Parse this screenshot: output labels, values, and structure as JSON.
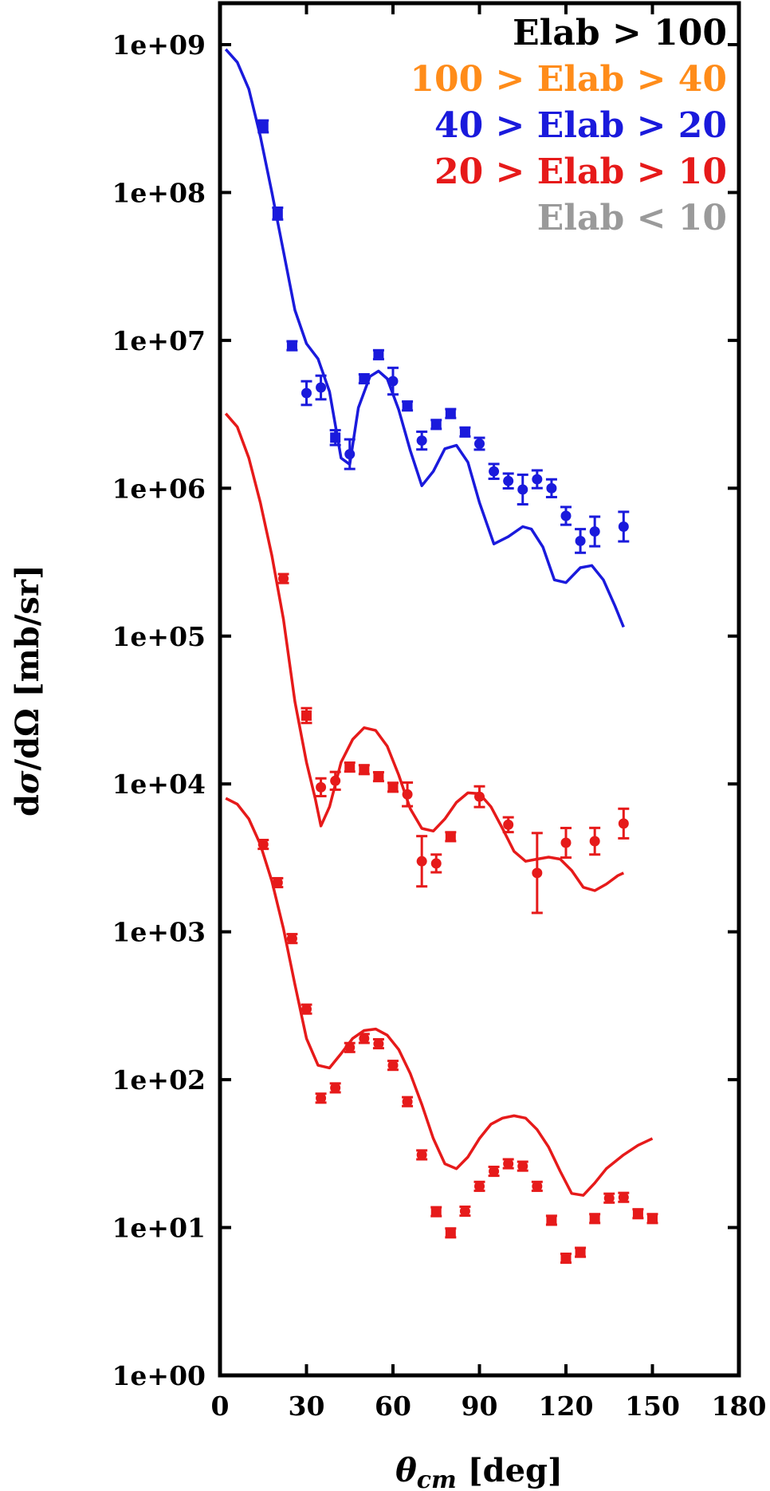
{
  "chart_data": {
    "type": "scatter",
    "xlabel": "θcm [deg]",
    "ylabel": "dσ/dΩ [mb/sr]",
    "xlim": [
      0,
      180
    ],
    "ylim": [
      1,
      1000000000
    ],
    "yscale": "log",
    "xticks": [
      0,
      30,
      60,
      90,
      120,
      150,
      180
    ],
    "yticks": [
      1,
      10,
      100,
      1000,
      10000,
      100000,
      1000000,
      10000000,
      100000000,
      1000000000
    ],
    "xtick_labels": [
      "0",
      "30",
      "60",
      "90",
      "120",
      "150",
      "180"
    ],
    "ytick_labels": [
      "1e+00",
      "1e+01",
      "1e+02",
      "1e+03",
      "1e+04",
      "1e+05",
      "1e+06",
      "1e+07",
      "1e+08",
      "1e+09"
    ],
    "grid": false,
    "legend_position": "top-right",
    "legend": [
      {
        "text": "Elab > 100",
        "color": "#000000"
      },
      {
        "text": "100 > Elab > 40",
        "color": "#ff8c1a"
      },
      {
        "text": "40 > Elab > 20",
        "color": "#1a1adc"
      },
      {
        "text": "20 > Elab > 10",
        "color": "#e61a1a"
      },
      {
        "text": "Elab < 10",
        "color": "#9a9a9a"
      }
    ],
    "series": [
      {
        "color": "#1a1adc",
        "curve": [
          [
            2,
            930000000.0
          ],
          [
            6,
            760000000.0
          ],
          [
            10,
            500000000.0
          ],
          [
            14,
            240000000.0
          ],
          [
            18,
            100000000.0
          ],
          [
            22,
            40000000.0
          ],
          [
            26,
            16000000.0
          ],
          [
            30,
            9500000.0
          ],
          [
            34,
            7500000.0
          ],
          [
            38,
            4500000.0
          ],
          [
            42,
            1600000.0
          ],
          [
            45,
            1450000.0
          ],
          [
            48,
            3500000.0
          ],
          [
            52,
            5700000.0
          ],
          [
            55,
            6200000.0
          ],
          [
            58,
            5500000.0
          ],
          [
            62,
            3400000.0
          ],
          [
            66,
            1800000.0
          ],
          [
            70,
            1040000.0
          ],
          [
            74,
            1300000.0
          ],
          [
            78,
            1850000.0
          ],
          [
            82,
            1950000.0
          ],
          [
            86,
            1500000.0
          ],
          [
            90,
            800000.0
          ],
          [
            95,
            420000.0
          ],
          [
            100,
            470000.0
          ],
          [
            105,
            550000.0
          ],
          [
            108,
            530000.0
          ],
          [
            112,
            400000.0
          ],
          [
            116,
            240000.0
          ],
          [
            120,
            230000.0
          ],
          [
            125,
            290000.0
          ],
          [
            129,
            300000.0
          ],
          [
            133,
            240000.0
          ],
          [
            137,
            160000.0
          ],
          [
            140,
            115000.0
          ]
        ],
        "points": [
          {
            "x": 15,
            "y": 280000000.0,
            "m": "s",
            "e": 0.04
          },
          {
            "x": 20,
            "y": 72000000.0,
            "m": "s",
            "e": 0.04
          },
          {
            "x": 25,
            "y": 9200000.0,
            "m": "s",
            "e": 0.03
          },
          {
            "x": 30,
            "y": 4400000.0,
            "m": "c",
            "e": 0.08
          },
          {
            "x": 35,
            "y": 4800000.0,
            "m": "c",
            "e": 0.08
          },
          {
            "x": 40,
            "y": 2200000.0,
            "m": "s",
            "e": 0.05
          },
          {
            "x": 45,
            "y": 1700000.0,
            "m": "c",
            "e": 0.1
          },
          {
            "x": 50,
            "y": 5500000.0,
            "m": "s",
            "e": 0.03
          },
          {
            "x": 55,
            "y": 8000000.0,
            "m": "s",
            "e": 0.03
          },
          {
            "x": 60,
            "y": 5300000.0,
            "m": "c",
            "e": 0.09
          },
          {
            "x": 65,
            "y": 3600000.0,
            "m": "s",
            "e": 0.03
          },
          {
            "x": 70,
            "y": 2100000.0,
            "m": "c",
            "e": 0.06
          },
          {
            "x": 75,
            "y": 2700000.0,
            "m": "s",
            "e": 0.03
          },
          {
            "x": 80,
            "y": 3200000.0,
            "m": "s",
            "e": 0.03
          },
          {
            "x": 85,
            "y": 2400000.0,
            "m": "s",
            "e": 0.03
          },
          {
            "x": 90,
            "y": 2000000.0,
            "m": "c",
            "e": 0.04
          },
          {
            "x": 95,
            "y": 1300000.0,
            "m": "c",
            "e": 0.05
          },
          {
            "x": 100,
            "y": 1120000.0,
            "m": "c",
            "e": 0.05
          },
          {
            "x": 105,
            "y": 980000.0,
            "m": "c",
            "e": 0.1
          },
          {
            "x": 110,
            "y": 1150000.0,
            "m": "c",
            "e": 0.06
          },
          {
            "x": 115,
            "y": 1000000.0,
            "m": "c",
            "e": 0.06
          },
          {
            "x": 120,
            "y": 650000.0,
            "m": "c",
            "e": 0.06
          },
          {
            "x": 125,
            "y": 440000.0,
            "m": "c",
            "e": 0.08
          },
          {
            "x": 130,
            "y": 510000.0,
            "m": "c",
            "e": 0.1
          },
          {
            "x": 140,
            "y": 550000.0,
            "m": "c",
            "e": 0.1
          }
        ]
      },
      {
        "color": "#e61a1a",
        "curve": [
          [
            2,
            3200000.0
          ],
          [
            6,
            2600000.0
          ],
          [
            10,
            1600000.0
          ],
          [
            14,
            800000.0
          ],
          [
            18,
            350000.0
          ],
          [
            22,
            130000.0
          ],
          [
            26,
            36000.0
          ],
          [
            30,
            14000.0
          ],
          [
            33,
            8000.0
          ],
          [
            35,
            5200.0
          ],
          [
            38,
            7000.0
          ],
          [
            42,
            14000.0
          ],
          [
            46,
            20000.0
          ],
          [
            50,
            24000.0
          ],
          [
            54,
            23000.0
          ],
          [
            58,
            18000.0
          ],
          [
            62,
            11500.0
          ],
          [
            66,
            6800.0
          ],
          [
            70,
            5000.0
          ],
          [
            74,
            4800.0
          ],
          [
            78,
            5800.0
          ],
          [
            82,
            7500.0
          ],
          [
            86,
            8700.0
          ],
          [
            90,
            8600.0
          ],
          [
            94,
            7000.0
          ],
          [
            98,
            5000.0
          ],
          [
            102,
            3500.0
          ],
          [
            106,
            3000.0
          ],
          [
            110,
            3100.0
          ],
          [
            114,
            3200.0
          ],
          [
            118,
            3100.0
          ],
          [
            122,
            2600.0
          ],
          [
            126,
            2000.0
          ],
          [
            130,
            1900.0
          ],
          [
            134,
            2100.0
          ],
          [
            138,
            2400.0
          ],
          [
            140,
            2500.0
          ]
        ],
        "points": [
          {
            "x": 22,
            "y": 245000.0,
            "m": "c",
            "e": 0.03
          },
          {
            "x": 30,
            "y": 29000.0,
            "m": "s",
            "e": 0.05
          },
          {
            "x": 35,
            "y": 9500.0,
            "m": "c",
            "e": 0.06
          },
          {
            "x": 40,
            "y": 10500.0,
            "m": "c",
            "e": 0.06
          },
          {
            "x": 45,
            "y": 13000.0,
            "m": "s",
            "e": 0.03
          },
          {
            "x": 50,
            "y": 12500.0,
            "m": "s",
            "e": 0.03
          },
          {
            "x": 55,
            "y": 11200.0,
            "m": "s",
            "e": 0.03
          },
          {
            "x": 60,
            "y": 9500.0,
            "m": "s",
            "e": 0.03
          },
          {
            "x": 65,
            "y": 8500.0,
            "m": "c",
            "e": 0.08
          },
          {
            "x": 70,
            "y": 3000.0,
            "m": "c",
            "e": 0.17
          },
          {
            "x": 75,
            "y": 2900.0,
            "m": "c",
            "e": 0.06
          },
          {
            "x": 80,
            "y": 4400.0,
            "m": "s",
            "e": 0.03
          },
          {
            "x": 90,
            "y": 8200.0,
            "m": "c",
            "e": 0.07
          },
          {
            "x": 100,
            "y": 5300.0,
            "m": "c",
            "e": 0.05
          },
          {
            "x": 110,
            "y": 2500.0,
            "m": "c",
            "e": 0.27
          },
          {
            "x": 120,
            "y": 4000.0,
            "m": "c",
            "e": 0.1
          },
          {
            "x": 130,
            "y": 4100.0,
            "m": "c",
            "e": 0.09
          },
          {
            "x": 140,
            "y": 5400.0,
            "m": "c",
            "e": 0.1
          }
        ]
      },
      {
        "color": "#e61a1a",
        "curve": [
          [
            2,
            8000.0
          ],
          [
            6,
            7300.0
          ],
          [
            10,
            5800.0
          ],
          [
            14,
            3900.0
          ],
          [
            18,
            2200.0
          ],
          [
            22,
            1050.0
          ],
          [
            26,
            440
          ],
          [
            30,
            190
          ],
          [
            34,
            125
          ],
          [
            38,
            120
          ],
          [
            42,
            150
          ],
          [
            46,
            190
          ],
          [
            50,
            215
          ],
          [
            54,
            220
          ],
          [
            58,
            200
          ],
          [
            62,
            160
          ],
          [
            66,
            110
          ],
          [
            70,
            68
          ],
          [
            74,
            40
          ],
          [
            78,
            27
          ],
          [
            82,
            25
          ],
          [
            86,
            30
          ],
          [
            90,
            40
          ],
          [
            94,
            50
          ],
          [
            98,
            55
          ],
          [
            102,
            57
          ],
          [
            106,
            55
          ],
          [
            110,
            46
          ],
          [
            114,
            35
          ],
          [
            118,
            24
          ],
          [
            122,
            17
          ],
          [
            126,
            16.5
          ],
          [
            130,
            20
          ],
          [
            134,
            25
          ],
          [
            140,
            31
          ],
          [
            145,
            36
          ],
          [
            150,
            40
          ]
        ],
        "points": [
          {
            "x": 15,
            "y": 3900.0,
            "m": "c",
            "e": 0.03
          },
          {
            "x": 20,
            "y": 2150.0,
            "m": "c",
            "e": 0.03
          },
          {
            "x": 25,
            "y": 900,
            "m": "c",
            "e": 0.03
          },
          {
            "x": 30,
            "y": 300,
            "m": "c",
            "e": 0.03
          },
          {
            "x": 35,
            "y": 75,
            "m": "c",
            "e": 0.03
          },
          {
            "x": 40,
            "y": 88,
            "m": "c",
            "e": 0.03
          },
          {
            "x": 45,
            "y": 165,
            "m": "c",
            "e": 0.03
          },
          {
            "x": 50,
            "y": 190,
            "m": "c",
            "e": 0.03
          },
          {
            "x": 55,
            "y": 175,
            "m": "c",
            "e": 0.03
          },
          {
            "x": 60,
            "y": 125,
            "m": "c",
            "e": 0.03
          },
          {
            "x": 65,
            "y": 71,
            "m": "c",
            "e": 0.03
          },
          {
            "x": 70,
            "y": 31,
            "m": "c",
            "e": 0.03
          },
          {
            "x": 75,
            "y": 12.8,
            "m": "s",
            "e": 0.03
          },
          {
            "x": 80,
            "y": 9.2,
            "m": "s",
            "e": 0.03
          },
          {
            "x": 85,
            "y": 12.9,
            "m": "c",
            "e": 0.03
          },
          {
            "x": 90,
            "y": 19,
            "m": "c",
            "e": 0.03
          },
          {
            "x": 95,
            "y": 24,
            "m": "c",
            "e": 0.03
          },
          {
            "x": 100,
            "y": 27,
            "m": "c",
            "e": 0.03
          },
          {
            "x": 105,
            "y": 26,
            "m": "c",
            "e": 0.03
          },
          {
            "x": 110,
            "y": 19,
            "m": "c",
            "e": 0.03
          },
          {
            "x": 115,
            "y": 11.2,
            "m": "s",
            "e": 0.03
          },
          {
            "x": 120,
            "y": 6.2,
            "m": "s",
            "e": 0.03
          },
          {
            "x": 125,
            "y": 6.8,
            "m": "s",
            "e": 0.03
          },
          {
            "x": 130,
            "y": 11.5,
            "m": "s",
            "e": 0.03
          },
          {
            "x": 135,
            "y": 15.8,
            "m": "c",
            "e": 0.03
          },
          {
            "x": 140,
            "y": 16,
            "m": "c",
            "e": 0.03
          },
          {
            "x": 145,
            "y": 12.4,
            "m": "s",
            "e": 0.03
          },
          {
            "x": 150,
            "y": 11.5,
            "m": "s",
            "e": 0.03
          }
        ]
      }
    ]
  }
}
